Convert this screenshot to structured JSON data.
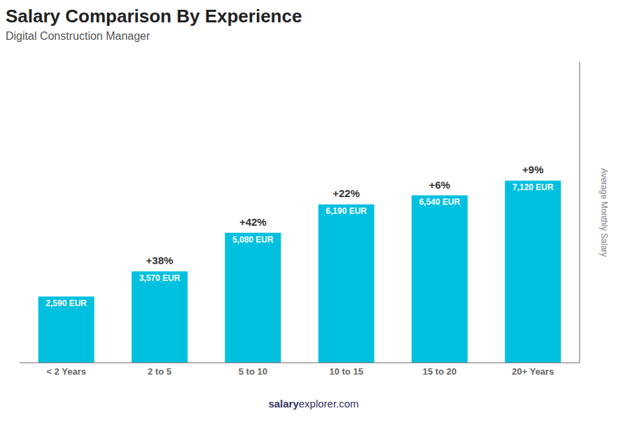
{
  "chart_data": {
    "type": "bar",
    "title": "Salary Comparison By Experience",
    "subtitle": "Digital Construction Manager",
    "categories": [
      "< 2 Years",
      "2 to 5",
      "5 to 10",
      "10 to 15",
      "15 to 20",
      "20+ Years"
    ],
    "values": [
      2590,
      3570,
      5080,
      6190,
      6540,
      7120
    ],
    "value_labels": [
      "2,590 EUR",
      "3,570 EUR",
      "5,080 EUR",
      "6,190 EUR",
      "6,540 EUR",
      "7,120 EUR"
    ],
    "data_labels": true,
    "color": "#00c0e0",
    "y_label": "Average Monthly Salary",
    "ylim": [
      0,
      11748
    ],
    "tick_labels": "x",
    "grid": false,
    "annotations": [
      {
        "text": "+38%",
        "category": "2 to 5"
      },
      {
        "text": "+42%",
        "category": "5 to 10"
      },
      {
        "text": "+22%",
        "category": "10 to 15"
      },
      {
        "text": "+6%",
        "category": "15 to 20"
      },
      {
        "text": "+9%",
        "category": "20+ Years"
      },
      {
        "text": "salary"
      },
      {
        "text": "explorer.com"
      }
    ]
  }
}
